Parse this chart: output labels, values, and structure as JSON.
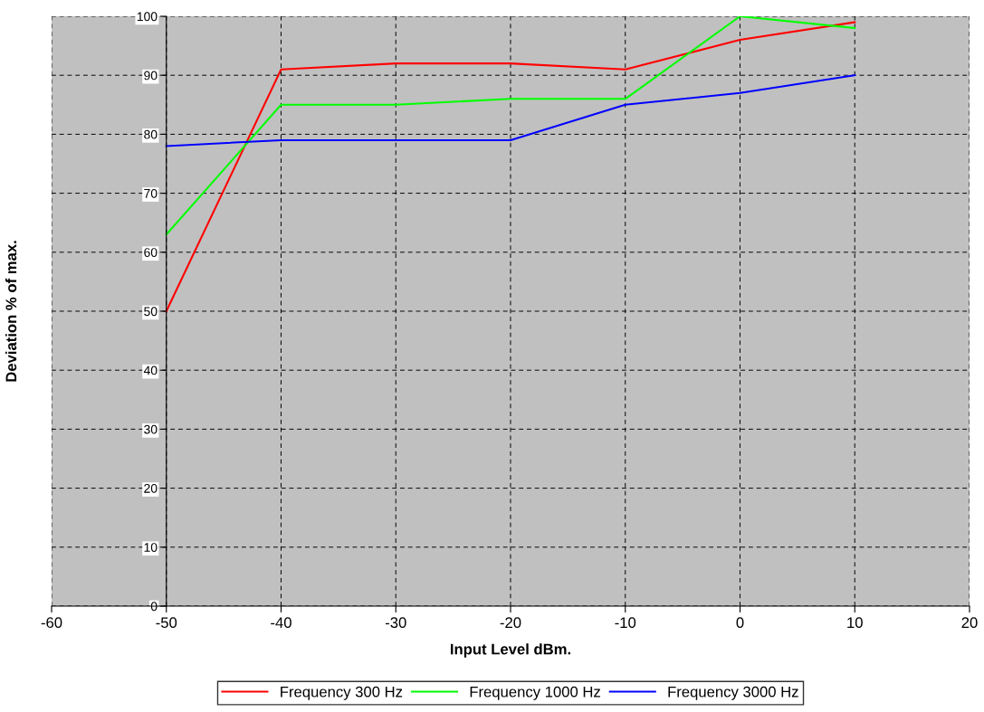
{
  "chart_data": {
    "type": "line",
    "xlabel": "Input Level dBm.",
    "ylabel": "Deviation % of max.",
    "x": [
      -50,
      -40,
      -30,
      -20,
      -10,
      0,
      10
    ],
    "series": [
      {
        "name": "Frequency 300 Hz",
        "color": "#ff0000",
        "values": [
          50,
          91,
          92,
          92,
          91,
          96,
          99
        ]
      },
      {
        "name": "Frequency 1000 Hz",
        "color": "#00ff00",
        "values": [
          63,
          85,
          85,
          86,
          86,
          100,
          98
        ]
      },
      {
        "name": "Frequency 3000 Hz",
        "color": "#0000ff",
        "values": [
          78,
          79,
          79,
          79,
          85,
          87,
          90
        ]
      }
    ],
    "xlim": [
      -60,
      20
    ],
    "xticks": [
      -60,
      -50,
      -40,
      -30,
      -20,
      -10,
      0,
      10,
      20
    ],
    "ylim": [
      0,
      100
    ],
    "yticks": [
      0,
      10,
      20,
      30,
      40,
      50,
      60,
      70,
      80,
      90,
      100
    ],
    "grid": true,
    "legend": "bottom",
    "marker": "none",
    "line_style": "solid"
  }
}
